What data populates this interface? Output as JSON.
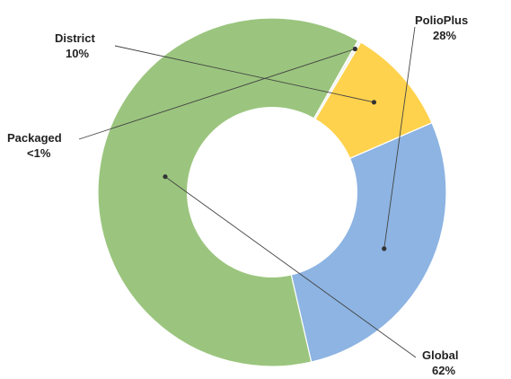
{
  "chart_data": {
    "type": "pie",
    "donut": true,
    "slices": [
      {
        "name": "PolioPlus",
        "label_name": "PolioPlus",
        "label_value": "28%",
        "value": 28,
        "color": "#8DB4E2"
      },
      {
        "name": "Global",
        "label_name": "Global",
        "label_value": "62%",
        "value": 62,
        "color": "#9BC57E"
      },
      {
        "name": "Packaged",
        "label_name": "Packaged",
        "label_value": "<1%",
        "value": 0.3,
        "color": "#F2F2F2"
      },
      {
        "name": "District",
        "label_name": "District",
        "label_value": "10%",
        "value": 10,
        "color": "#FFD24D"
      }
    ],
    "legend": "none"
  }
}
